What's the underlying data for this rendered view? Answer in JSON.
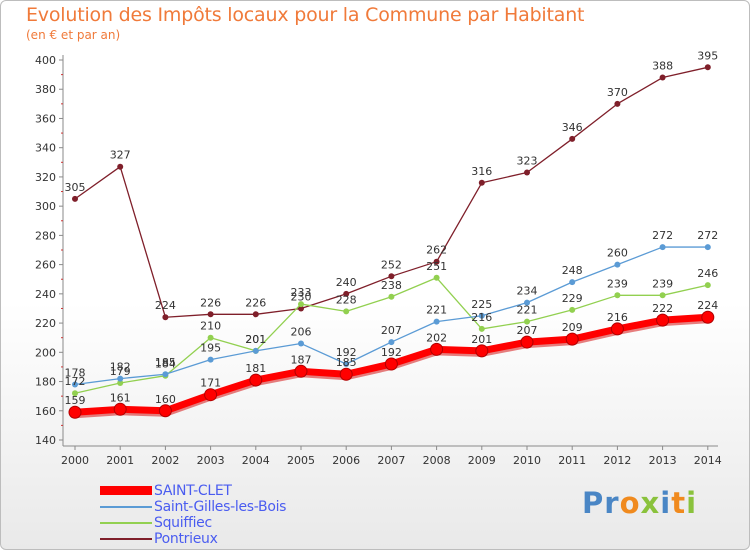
{
  "chart_data": {
    "type": "line",
    "title": "Evolution des Impôts locaux pour la Commune par Habitant",
    "subtitle": "(en € et par an)",
    "categories": [
      "2000",
      "2001",
      "2002",
      "2003",
      "2004",
      "2005",
      "2006",
      "2007",
      "2008",
      "2009",
      "2010",
      "2011",
      "2012",
      "2013",
      "2014"
    ],
    "ylim": [
      140,
      400
    ],
    "yticks": [
      140,
      160,
      180,
      200,
      220,
      240,
      260,
      280,
      300,
      320,
      340,
      360,
      380,
      400
    ],
    "grid": false,
    "legend_position": "bottom-left",
    "series": [
      {
        "name": "SAINT-CLET",
        "color": "#ff0000",
        "values": [
          159,
          161,
          160,
          171,
          181,
          187,
          185,
          192,
          202,
          201,
          207,
          209,
          216,
          222,
          224
        ]
      },
      {
        "name": "Saint-Gilles-les-Bois",
        "color": "#5b9bd5",
        "values": [
          178,
          182,
          185,
          195,
          201,
          206,
          192,
          207,
          221,
          225,
          234,
          248,
          260,
          272,
          272
        ]
      },
      {
        "name": "Squiffiec",
        "color": "#92d050",
        "values": [
          172,
          179,
          184,
          210,
          201,
          233,
          228,
          238,
          251,
          216,
          221,
          229,
          239,
          239,
          246
        ]
      },
      {
        "name": "Pontrieux",
        "color": "#7f1f2a",
        "values": [
          305,
          327,
          224,
          226,
          226,
          230,
          240,
          252,
          262,
          316,
          323,
          346,
          370,
          388,
          395
        ]
      }
    ]
  },
  "logo": {
    "text": "Proxiti",
    "colors": [
      "#4a86c5",
      "#4a86c5",
      "#f08a1e",
      "#8ac23c",
      "#4a86c5",
      "#f08a1e",
      "#8ac23c"
    ]
  }
}
